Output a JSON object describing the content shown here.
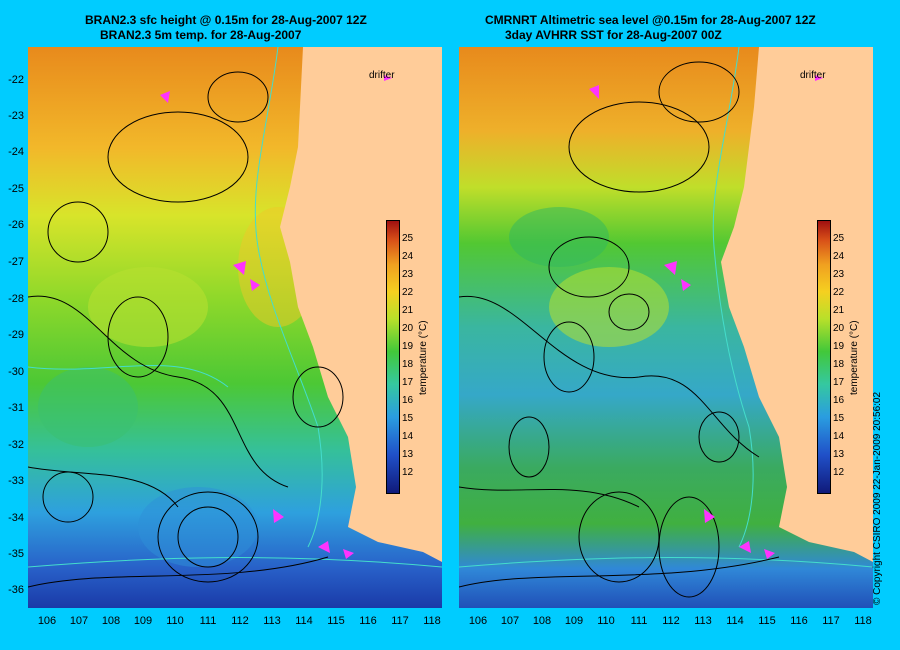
{
  "left_panel": {
    "title_line1": "BRAN2.3 sfc height @ 0.15m for 28-Aug-2007 12Z",
    "title_line2": "BRAN2.3 5m temp. for 28-Aug-2007",
    "drifter_label": "drifter"
  },
  "right_panel": {
    "title_line1": "CMRNRT Altimetric sea level  @0.15m  for 28-Aug-2007 12Z",
    "title_line2": "3day AVHRR SST for 28-Aug-2007 00Z",
    "drifter_label": "drifter"
  },
  "y_axis_ticks": [
    "-22",
    "-23",
    "-24",
    "-25",
    "-26",
    "-27",
    "-28",
    "-29",
    "-30",
    "-31",
    "-32",
    "-33",
    "-34",
    "-35",
    "-36"
  ],
  "x_axis_ticks": [
    "106",
    "107",
    "108",
    "109",
    "110",
    "111",
    "112",
    "113",
    "114",
    "115",
    "116",
    "117",
    "118"
  ],
  "colorbar": {
    "ticks": [
      "25",
      "24",
      "23",
      "22",
      "21",
      "20",
      "19",
      "18",
      "17",
      "16",
      "15",
      "14",
      "13",
      "12"
    ],
    "label": "temperature (°C)",
    "range": [
      11,
      26
    ]
  },
  "copyright": "© Copyright CSIRO 2009  22-Jan-2009 20:56:02",
  "colors": {
    "background": "#00ccff",
    "land": "#ffcc99",
    "drifter": "#ff33ff",
    "contour": "#000000",
    "isobath": "#44ddcc"
  }
}
